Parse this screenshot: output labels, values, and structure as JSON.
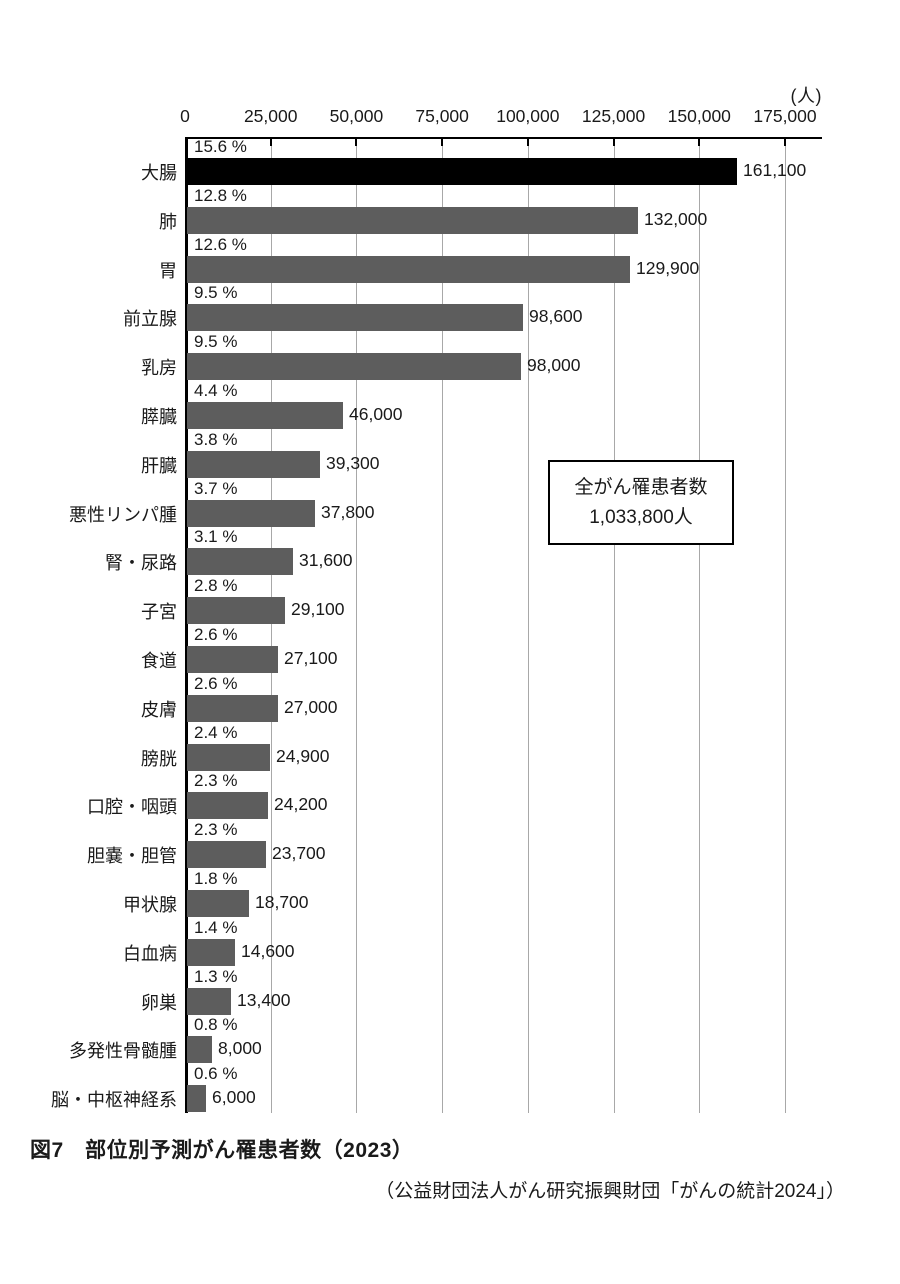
{
  "chart": {
    "unit_label": "(人)",
    "annotation": {
      "line1": "全がん罹患者数",
      "line2": "1,033,800人"
    },
    "caption": "図7　部位別予測がん罹患者数（2023）",
    "source": "（公益財団法人がん研究振興財団「がんの統計2024」）"
  },
  "chart_data": {
    "type": "bar",
    "orientation": "horizontal",
    "title": "図7　部位別予測がん罹患者数（2023）",
    "source": "（公益財団法人がん研究振興財団「がんの統計2024」）",
    "unit": "人",
    "x_axis": {
      "position": "top",
      "min": 0,
      "max": 175000,
      "tick_interval": 25000,
      "tick_labels": [
        "0",
        "25,000",
        "50,000",
        "75,000",
        "100,000",
        "125,000",
        "150,000",
        "175,000"
      ],
      "grid": true
    },
    "annotation": {
      "text": "全がん罹患者数 1,033,800人",
      "total_value": 1033800
    },
    "colors": {
      "bar": "#5d5d5d",
      "highlight": "#000000",
      "gridline": "#a8a8a8",
      "axis": "#000000"
    },
    "bars": [
      {
        "category": "大腸",
        "percent_label": "15.6 %",
        "percent": 15.6,
        "value": 161100,
        "value_label": "161,100",
        "highlight": true
      },
      {
        "category": "肺",
        "percent_label": "12.8 %",
        "percent": 12.8,
        "value": 132000,
        "value_label": "132,000",
        "highlight": false
      },
      {
        "category": "胃",
        "percent_label": "12.6 %",
        "percent": 12.6,
        "value": 129900,
        "value_label": "129,900",
        "highlight": false
      },
      {
        "category": "前立腺",
        "percent_label": "9.5 %",
        "percent": 9.5,
        "value": 98600,
        "value_label": "98,600",
        "highlight": false
      },
      {
        "category": "乳房",
        "percent_label": "9.5 %",
        "percent": 9.5,
        "value": 98000,
        "value_label": "98,000",
        "highlight": false
      },
      {
        "category": "膵臓",
        "percent_label": "4.4 %",
        "percent": 4.4,
        "value": 46000,
        "value_label": "46,000",
        "highlight": false
      },
      {
        "category": "肝臓",
        "percent_label": "3.8 %",
        "percent": 3.8,
        "value": 39300,
        "value_label": "39,300",
        "highlight": false
      },
      {
        "category": "悪性リンパ腫",
        "percent_label": "3.7 %",
        "percent": 3.7,
        "value": 37800,
        "value_label": "37,800",
        "highlight": false
      },
      {
        "category": "腎・尿路",
        "percent_label": "3.1 %",
        "percent": 3.1,
        "value": 31600,
        "value_label": "31,600",
        "highlight": false
      },
      {
        "category": "子宮",
        "percent_label": "2.8 %",
        "percent": 2.8,
        "value": 29100,
        "value_label": "29,100",
        "highlight": false
      },
      {
        "category": "食道",
        "percent_label": "2.6 %",
        "percent": 2.6,
        "value": 27100,
        "value_label": "27,100",
        "highlight": false
      },
      {
        "category": "皮膚",
        "percent_label": "2.6 %",
        "percent": 2.6,
        "value": 27000,
        "value_label": "27,000",
        "highlight": false
      },
      {
        "category": "膀胱",
        "percent_label": "2.4 %",
        "percent": 2.4,
        "value": 24900,
        "value_label": "24,900",
        "highlight": false
      },
      {
        "category": "口腔・咽頭",
        "percent_label": "2.3 %",
        "percent": 2.3,
        "value": 24200,
        "value_label": "24,200",
        "highlight": false
      },
      {
        "category": "胆嚢・胆管",
        "percent_label": "2.3 %",
        "percent": 2.3,
        "value": 23700,
        "value_label": "23,700",
        "highlight": false
      },
      {
        "category": "甲状腺",
        "percent_label": "1.8 %",
        "percent": 1.8,
        "value": 18700,
        "value_label": "18,700",
        "highlight": false
      },
      {
        "category": "白血病",
        "percent_label": "1.4 %",
        "percent": 1.4,
        "value": 14600,
        "value_label": "14,600",
        "highlight": false
      },
      {
        "category": "卵巣",
        "percent_label": "1.3 %",
        "percent": 1.3,
        "value": 13400,
        "value_label": "13,400",
        "highlight": false
      },
      {
        "category": "多発性骨髄腫",
        "percent_label": "0.8 %",
        "percent": 0.8,
        "value": 8000,
        "value_label": "8,000",
        "highlight": false
      },
      {
        "category": "脳・中枢神経系",
        "percent_label": "0.6 %",
        "percent": 0.6,
        "value": 6000,
        "value_label": "6,000",
        "highlight": false
      }
    ]
  }
}
